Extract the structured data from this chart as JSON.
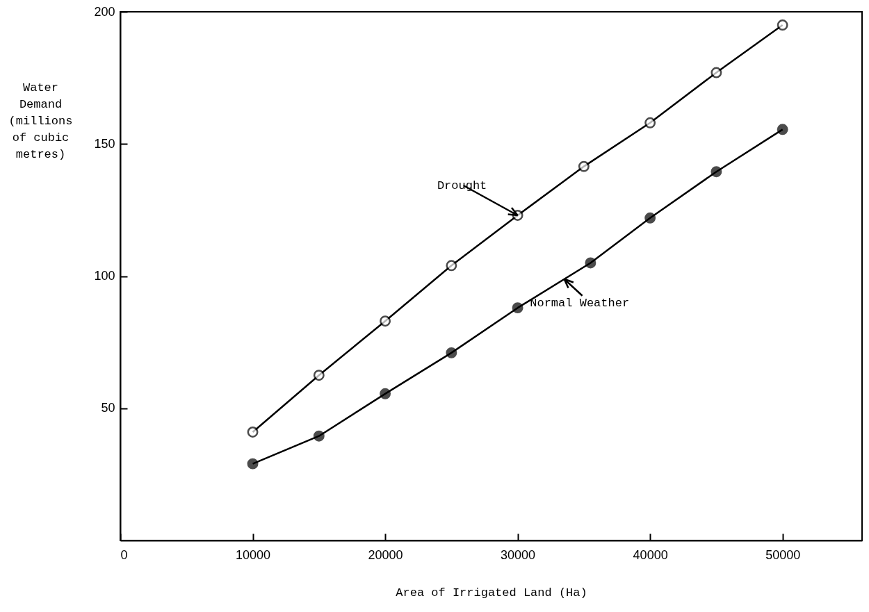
{
  "chart_data": {
    "type": "line",
    "xlabel": "Area of Irrigated Land (Ha)",
    "ylabel": "Water Demand (millions of cubic metres)",
    "xlim": [
      0,
      56000
    ],
    "xticks": [
      0,
      10000,
      20000,
      30000,
      40000,
      50000
    ],
    "ylim": [
      0,
      200
    ],
    "yticks": [
      50,
      100,
      150,
      200
    ],
    "x": [
      10000,
      15000,
      20000,
      25000,
      30000,
      35000,
      40000,
      45000,
      50000
    ],
    "marker": "circle",
    "grid": false,
    "line_style": "solid",
    "series": [
      {
        "name": "Drought",
        "color": "#ffffff",
        "values": [
          41,
          62.5,
          83,
          104,
          123,
          141.5,
          158,
          177,
          195
        ]
      },
      {
        "name": "Normal Weather",
        "color": "#000000",
        "x": [
          10000,
          15000,
          20000,
          25000,
          30000,
          35500,
          40000,
          45000,
          50000
        ],
        "values": [
          29,
          39.5,
          55.5,
          71,
          88,
          105,
          122,
          139.5,
          155.5
        ]
      }
    ]
  }
}
